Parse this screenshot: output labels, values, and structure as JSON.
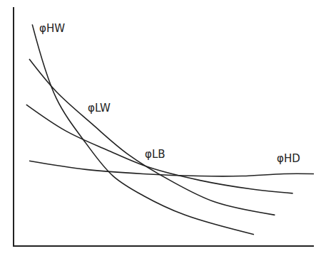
{
  "chart_data": {
    "type": "line",
    "xlim": [
      0,
      10
    ],
    "ylim": [
      0,
      11
    ],
    "tick_labels": false,
    "series": [
      {
        "name": "φHW",
        "color": "#222222",
        "x": [
          0.6,
          1.4,
          2.4,
          3.3,
          4.3,
          5.7,
          8.0
        ],
        "values": [
          10.2,
          6.8,
          4.7,
          3.2,
          2.3,
          1.4,
          0.5
        ]
      },
      {
        "name": "φLW",
        "color": "#222222",
        "x": [
          0.5,
          1.4,
          2.6,
          3.8,
          5.2,
          6.7,
          8.7
        ],
        "values": [
          8.6,
          7.1,
          5.6,
          4.2,
          3.0,
          2.0,
          1.4
        ]
      },
      {
        "name": "φLB",
        "color": "#222222",
        "x": [
          0.4,
          1.7,
          3.1,
          4.5,
          6.2,
          7.9,
          9.3
        ],
        "values": [
          6.5,
          5.3,
          4.4,
          3.6,
          3.0,
          2.6,
          2.4
        ]
      },
      {
        "name": "φHD",
        "color": "#222222",
        "x": [
          0.5,
          2.4,
          4.3,
          6.2,
          7.6,
          9.0,
          10.0
        ],
        "values": [
          3.9,
          3.5,
          3.3,
          3.2,
          3.2,
          3.3,
          3.3
        ]
      }
    ]
  }
}
